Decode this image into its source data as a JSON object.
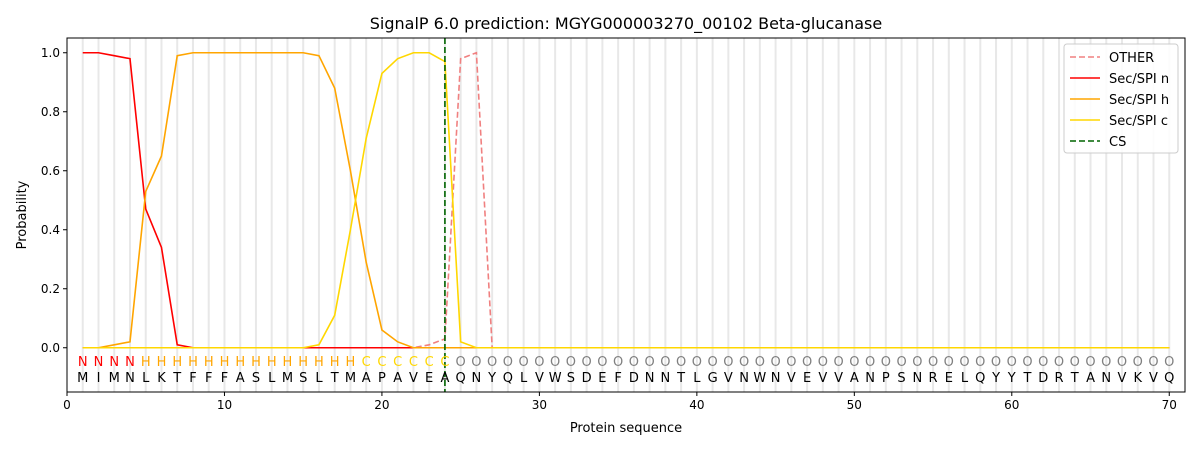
{
  "chart_data": {
    "type": "line",
    "title": "SignalP 6.0 prediction: MGYG000003270_00102 Beta-glucanase",
    "xlabel": "Protein sequence",
    "ylabel": "Probability",
    "xlim": [
      0,
      71
    ],
    "ylim": [
      -0.15,
      1.05
    ],
    "xticks": [
      0,
      10,
      20,
      30,
      40,
      50,
      60,
      70
    ],
    "yticks": [
      "0.0",
      "0.2",
      "0.4",
      "0.6",
      "0.8",
      "1.0"
    ],
    "sequence": "MIMNLKTFFFASLMSLTMAPAVEAQNYQLVWSDEFDNNTLGVNWNVEVVANPSNRELQYYTDRTANVKVQ",
    "labels": "NNNNHHHHHHHHHHHHHHCCCCCCOOOOOOOOOOOOOOOOOOOOOOOOOOOOOOOOOOOOOOOOOOOOOO",
    "label_colors": {
      "N": "#ff0000",
      "H": "#ffa500",
      "C": "#ffd700",
      "O": "#808080"
    },
    "cs_position": 24,
    "legend_position": "top-right",
    "series": [
      {
        "name": "OTHER",
        "color": "#f08080",
        "dash": true,
        "values": [
          0,
          0,
          0,
          0,
          0,
          0,
          0,
          0,
          0,
          0,
          0,
          0,
          0,
          0,
          0,
          0,
          0,
          0,
          0,
          0,
          0,
          0,
          0.01,
          0.03,
          0.98,
          1.0
        ]
      },
      {
        "name": "Sec/SPI n",
        "color": "#ff0000",
        "dash": false,
        "values": [
          1.0,
          1.0,
          0.99,
          0.98,
          0.47,
          0.34,
          0.01,
          0
        ]
      },
      {
        "name": "Sec/SPI h",
        "color": "#ffa500",
        "dash": false,
        "values": [
          0,
          0,
          0.01,
          0.02,
          0.53,
          0.65,
          0.99,
          1.0,
          1.0,
          1.0,
          1.0,
          1.0,
          1.0,
          1.0,
          1.0,
          0.99,
          0.88,
          0.6,
          0.29,
          0.06,
          0.02,
          0,
          0,
          0
        ]
      },
      {
        "name": "Sec/SPI c",
        "color": "#ffd700",
        "dash": false,
        "values": [
          0,
          0,
          0,
          0,
          0,
          0,
          0,
          0,
          0,
          0,
          0,
          0,
          0,
          0,
          0,
          0.01,
          0.11,
          0.4,
          0.71,
          0.93,
          0.98,
          1.0,
          1.0,
          0.97,
          0.02,
          0
        ]
      },
      {
        "name": "CS",
        "color": "#006400",
        "dash": true,
        "values": []
      }
    ]
  }
}
